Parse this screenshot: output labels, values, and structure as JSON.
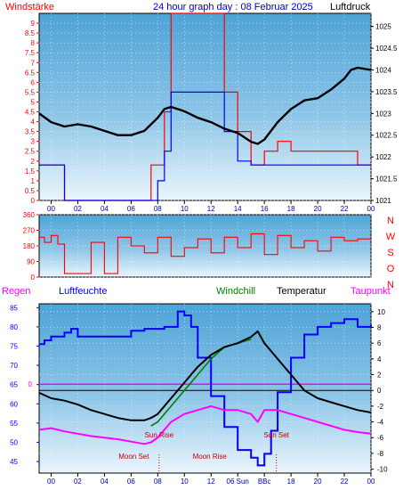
{
  "header": {
    "left_label": "Windstärke",
    "title": "24 hour graph day : 08 Februar 2025",
    "right_label": "Luftdruck"
  },
  "direction_labels": [
    "N",
    "W",
    "S",
    "O",
    "N"
  ],
  "bottom_headers": {
    "regen": "Regen",
    "luftfeuchte": "Luftfeuchte",
    "windchill": "Windchill",
    "temperatur": "Temperatur",
    "taupunkt": "Taupunkt"
  },
  "colors": {
    "wind_gust": "#ff0000",
    "wind_avg": "#0000ff",
    "pressure": "#000000",
    "direction": "#ff0000",
    "humidity": "#0000ff",
    "temperature": "#000000",
    "windchill": "#008000",
    "dewpoint": "#ff00ff",
    "rain": "#ff00ff"
  },
  "chart_data": [
    {
      "type": "line",
      "panel": "wind-pressure",
      "title": "24 hour graph day : 08 Februar 2025",
      "ylabel_left": "Windstärke",
      "ylabel_right": "Luftdruck",
      "x_ticks": [
        "00",
        "02",
        "04",
        "06",
        "08",
        "10",
        "12",
        "14",
        "16",
        "18",
        "20",
        "22",
        "00"
      ],
      "y_left_ticks": [
        0,
        0.5,
        1,
        1.5,
        2,
        2.5,
        3,
        3.5,
        4,
        4.5,
        5,
        5.5,
        6,
        6.5,
        7,
        7.5,
        8,
        8.5,
        9
      ],
      "y_right_ticks": [
        1021,
        1021.5,
        1022,
        1022.5,
        1023,
        1023.5,
        1024,
        1024.5,
        1025
      ],
      "ylim_left": [
        0,
        9.5
      ],
      "ylim_right": [
        1021,
        1025.3
      ],
      "xlim": [
        -0.9,
        24
      ],
      "grid": true,
      "series": [
        {
          "name": "Luftdruck",
          "axis": "right",
          "x": [
            -0.9,
            0,
            1,
            2,
            3,
            4,
            5,
            6,
            7,
            8,
            8.5,
            9,
            10,
            11,
            12,
            13,
            14,
            15,
            15.5,
            16,
            17,
            18,
            19,
            20,
            21,
            22,
            22.5,
            23,
            24
          ],
          "y": [
            1023,
            1022.8,
            1022.7,
            1022.75,
            1022.7,
            1022.6,
            1022.5,
            1022.5,
            1022.6,
            1022.9,
            1023.1,
            1023.15,
            1023.05,
            1022.9,
            1022.8,
            1022.65,
            1022.55,
            1022.35,
            1022.3,
            1022.4,
            1022.8,
            1023.1,
            1023.3,
            1023.35,
            1023.55,
            1023.8,
            1024,
            1024.05,
            1024
          ]
        },
        {
          "name": "",
          "axis": "left",
          "x": [
            -0.9,
            0,
            1,
            2,
            3,
            4,
            5,
            6,
            7,
            7.5,
            8,
            8.5,
            9,
            10,
            11,
            12,
            13,
            14,
            15,
            16,
            17,
            18,
            19,
            20,
            21,
            22,
            23,
            24
          ],
          "y": [
            1.8,
            1.8,
            0,
            0,
            0,
            0,
            0,
            0,
            0,
            1.8,
            1.8,
            4.5,
            9.5,
            9.5,
            9.5,
            9.5,
            5.5,
            3.5,
            1.8,
            2.5,
            3,
            2.5,
            2.5,
            2.5,
            2.5,
            2.5,
            1.8,
            1.8
          ]
        },
        {
          "name": "",
          "axis": "left",
          "x": [
            -0.9,
            0,
            1,
            2,
            3,
            4,
            5,
            6,
            7,
            7.5,
            8,
            8.5,
            9,
            10,
            11,
            12,
            13,
            14,
            15,
            16,
            17,
            18,
            19,
            20,
            21,
            22,
            23,
            24
          ],
          "y": [
            1.8,
            1.8,
            0,
            0,
            0,
            0,
            0,
            0,
            0,
            0,
            1,
            2.5,
            5.5,
            5.5,
            5.5,
            5.5,
            3.5,
            2,
            1.8,
            1.8,
            1.8,
            1.8,
            1.8,
            1.8,
            1.8,
            1.8,
            1.8,
            1.8
          ]
        }
      ]
    },
    {
      "type": "line",
      "panel": "wind-direction",
      "y_ticks": [
        0,
        90,
        180,
        270,
        360
      ],
      "ylim": [
        0,
        360
      ],
      "xlim": [
        -0.9,
        24
      ],
      "grid": true,
      "series": [
        {
          "name": "",
          "x": [
            -0.9,
            -0.5,
            0,
            0.5,
            1,
            2,
            3,
            4,
            5,
            6,
            7,
            8,
            9,
            10,
            11,
            12,
            13,
            14,
            15,
            16,
            17,
            18,
            19,
            20,
            21,
            22,
            23,
            24
          ],
          "y": [
            230,
            200,
            240,
            190,
            20,
            20,
            200,
            20,
            230,
            180,
            140,
            230,
            120,
            170,
            220,
            140,
            230,
            170,
            250,
            130,
            240,
            170,
            210,
            150,
            230,
            210,
            220,
            220
          ]
        }
      ]
    },
    {
      "type": "line",
      "panel": "temperature-humidity",
      "y_left_ticks": [
        45,
        50,
        55,
        60,
        65,
        70,
        75,
        80,
        85
      ],
      "y_right_ticks": [
        -10,
        -8,
        -6,
        -4,
        -2,
        0,
        2,
        4,
        6,
        8,
        10
      ],
      "ylim_left": [
        42,
        86
      ],
      "ylim_right": [
        -10.5,
        11
      ],
      "rain_label": "0",
      "rain_value": 0,
      "xlim": [
        -0.9,
        24
      ],
      "x_ticks": [
        "00",
        "02",
        "04",
        "06",
        "08",
        "10",
        "12",
        "14",
        "16",
        "18",
        "20",
        "22",
        "00"
      ],
      "x_tick_overrides": {
        "7": "06 Sun",
        "8": "BBc"
      },
      "grid": true,
      "annotations": [
        {
          "label": "Sun Rise",
          "x": 8.1
        },
        {
          "label": "Sun Set",
          "x": 16.9
        },
        {
          "label": "Moon Set",
          "x": 6.2
        },
        {
          "label": "Moon Rise",
          "x": 11.9
        }
      ],
      "series": [
        {
          "name": "Luftfeuchte",
          "axis": "left",
          "x": [
            -0.9,
            -0.5,
            0,
            1,
            1.5,
            2,
            4,
            6,
            7,
            8,
            8.5,
            9,
            9.5,
            10,
            10.5,
            11,
            12,
            13,
            14,
            15,
            15.5,
            16,
            16.5,
            17,
            18,
            19,
            20,
            21,
            22,
            23,
            24
          ],
          "y": [
            75.5,
            76.5,
            77.5,
            78.5,
            79.5,
            77.5,
            77.5,
            79,
            79.5,
            79.5,
            80,
            80,
            84,
            83,
            80,
            72,
            62,
            54,
            48,
            46,
            44,
            47,
            53,
            63,
            72,
            78,
            80,
            81,
            82,
            80,
            80.5
          ]
        },
        {
          "name": "Temperatur",
          "axis": "right",
          "x": [
            -0.9,
            0,
            1,
            2,
            3,
            4,
            5,
            6,
            7,
            7.5,
            8,
            8.5,
            9,
            10,
            11,
            12,
            13,
            14,
            15,
            15.5,
            16,
            17,
            18,
            19,
            20,
            21,
            22,
            23,
            24
          ],
          "y": [
            -0.3,
            -1,
            -1.3,
            -1.8,
            -2.5,
            -3,
            -3.5,
            -3.8,
            -3.8,
            -3.5,
            -3,
            -2,
            -1,
            1,
            3,
            4.5,
            5.5,
            6,
            6.8,
            7.5,
            6,
            4,
            2,
            0,
            -1,
            -1.5,
            -2,
            -2.5,
            -2.8
          ]
        },
        {
          "name": "Windchill",
          "axis": "right",
          "x": [
            7.5,
            8,
            8.5,
            9,
            10,
            11,
            12,
            13,
            14,
            15
          ],
          "y": [
            -4.5,
            -4,
            -3,
            -2,
            0,
            2,
            4,
            5.5,
            6,
            6.5
          ]
        },
        {
          "name": "Taupunkt",
          "axis": "right",
          "x": [
            -0.9,
            0,
            1,
            2,
            3,
            4,
            5,
            6,
            7,
            7.5,
            8,
            8.5,
            9,
            10,
            11,
            12,
            13,
            14,
            15,
            15.5,
            16,
            17,
            18,
            19,
            20,
            21,
            22,
            23,
            24
          ],
          "y": [
            -5,
            -4.8,
            -5.2,
            -5.5,
            -5.8,
            -6,
            -6.2,
            -6.5,
            -6.8,
            -6.6,
            -6,
            -5,
            -4,
            -3,
            -2.5,
            -2,
            -2.5,
            -2.5,
            -3,
            -4,
            -2.5,
            -2.5,
            -3,
            -3.5,
            -4,
            -4.5,
            -5,
            -5.3,
            -5.5
          ]
        }
      ]
    }
  ]
}
